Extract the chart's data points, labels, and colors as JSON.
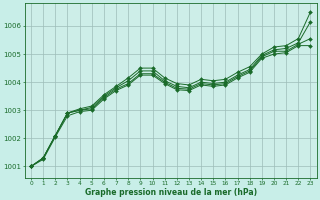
{
  "title": "Graphe pression niveau de la mer (hPa)",
  "background_color": "#c8eee8",
  "plot_bg_color": "#cdeee8",
  "grid_color": "#9dbdb8",
  "line_color": "#1a6b2a",
  "xlim": [
    -0.5,
    23.5
  ],
  "ylim": [
    1000.6,
    1006.8
  ],
  "yticks": [
    1001,
    1002,
    1003,
    1004,
    1005,
    1006
  ],
  "xticks": [
    0,
    1,
    2,
    3,
    4,
    5,
    6,
    7,
    8,
    9,
    10,
    11,
    12,
    13,
    14,
    15,
    16,
    17,
    18,
    19,
    20,
    21,
    22,
    23
  ],
  "series": [
    [
      1001.0,
      1001.3,
      1002.1,
      1002.9,
      1003.05,
      1003.15,
      1003.55,
      1003.85,
      1004.15,
      1004.5,
      1004.5,
      1004.15,
      1003.95,
      1003.9,
      1004.1,
      1004.05,
      1004.1,
      1004.35,
      1004.55,
      1005.0,
      1005.25,
      1005.3,
      1005.55,
      1006.5
    ],
    [
      1001.0,
      1001.3,
      1002.1,
      1002.9,
      1003.0,
      1003.1,
      1003.5,
      1003.8,
      1004.05,
      1004.4,
      1004.4,
      1004.05,
      1003.85,
      1003.8,
      1004.0,
      1003.95,
      1004.0,
      1004.25,
      1004.45,
      1004.95,
      1005.15,
      1005.2,
      1005.4,
      1006.15
    ],
    [
      1001.0,
      1001.3,
      1002.1,
      1002.9,
      1003.0,
      1003.05,
      1003.45,
      1003.75,
      1003.95,
      1004.3,
      1004.3,
      1004.0,
      1003.78,
      1003.75,
      1003.95,
      1003.9,
      1003.95,
      1004.2,
      1004.4,
      1004.9,
      1005.1,
      1005.1,
      1005.35,
      1005.55
    ],
    [
      1001.0,
      1001.25,
      1002.05,
      1002.8,
      1002.95,
      1003.0,
      1003.4,
      1003.7,
      1003.9,
      1004.25,
      1004.25,
      1003.95,
      1003.73,
      1003.7,
      1003.9,
      1003.85,
      1003.9,
      1004.15,
      1004.35,
      1004.85,
      1005.0,
      1005.05,
      1005.3,
      1005.3
    ]
  ]
}
